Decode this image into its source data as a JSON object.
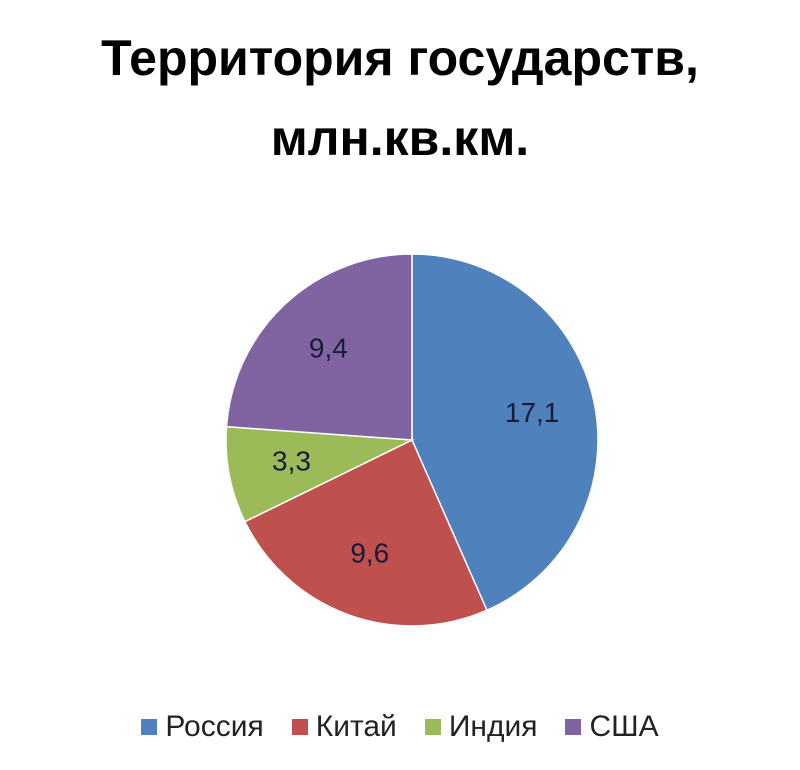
{
  "chart_data": {
    "type": "pie",
    "title": "Территория государств, млн.кв.км.",
    "categories": [
      "Россия",
      "Китай",
      "Индия",
      "США"
    ],
    "values": [
      17.1,
      9.6,
      3.3,
      9.4
    ],
    "value_labels": [
      "17,1",
      "9,6",
      "3,3",
      "9,4"
    ],
    "colors": [
      "#4f81bd",
      "#c0504d",
      "#9bbb59",
      "#8064a2"
    ],
    "legend": "bottom"
  }
}
